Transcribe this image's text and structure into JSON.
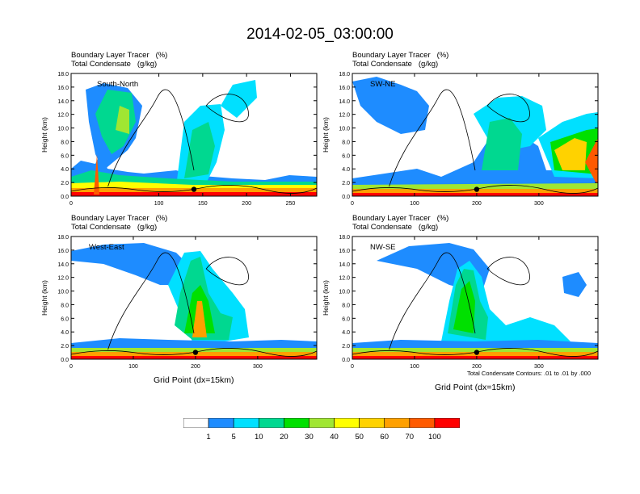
{
  "title": "2014-02-05_03:00:00",
  "panel_header": {
    "line1": "Boundary Layer Tracer",
    "unit1": "(%)",
    "line2": "Total Condensate",
    "unit2": "(g/kg)"
  },
  "x_axis_label": "Grid Point (dx=15km)",
  "contour_note": "Total Condensate Contours: .01 to .01 by .000",
  "colors": {
    "levels": [
      "#ffffff",
      "#1e8cff",
      "#00e0ff",
      "#00d890",
      "#00e000",
      "#a0e632",
      "#ffff00",
      "#ffd200",
      "#ffa000",
      "#ff5a00",
      "#ff0000"
    ]
  },
  "colorbar": {
    "labels": [
      "1",
      "5",
      "10",
      "20",
      "30",
      "40",
      "50",
      "60",
      "70",
      "100"
    ]
  },
  "chart_data": [
    {
      "type": "contour",
      "name": "South-North",
      "title": "South-North",
      "ylabel": "Height (km)",
      "yticks": [
        "0.0",
        "2.0",
        "4.0",
        "6.0",
        "8.0",
        "10.0",
        "12.0",
        "14.0",
        "16.0",
        "18.0"
      ],
      "ylim": [
        0,
        18
      ],
      "xticks": [
        "0",
        "100",
        "150",
        "200",
        "250"
      ],
      "xtick_values": [
        0,
        100,
        150,
        200,
        250
      ],
      "xlim": [
        0,
        280
      ],
      "marker_x": 140,
      "marker_y": 1.0
    },
    {
      "type": "contour",
      "name": "SW-NE",
      "title": "SW-NE",
      "ylabel": "Height (km)",
      "yticks": [
        "0.0",
        "2.0",
        "4.0",
        "6.0",
        "8.0",
        "10.0",
        "12.0",
        "14.0",
        "16.0",
        "18.0"
      ],
      "ylim": [
        0,
        18
      ],
      "xticks": [
        "0",
        "100",
        "200",
        "300"
      ],
      "xtick_values": [
        0,
        100,
        200,
        300
      ],
      "xlim": [
        0,
        395
      ],
      "marker_x": 200,
      "marker_y": 1.0
    },
    {
      "type": "contour",
      "name": "West-East",
      "title": "West-East",
      "ylabel": "Height (km)",
      "yticks": [
        "0.0",
        "2.0",
        "4.0",
        "6.0",
        "8.0",
        "10.0",
        "12.0",
        "14.0",
        "16.0",
        "18.0"
      ],
      "ylim": [
        0,
        18
      ],
      "xticks": [
        "0",
        "100",
        "200",
        "300"
      ],
      "xtick_values": [
        0,
        100,
        200,
        300
      ],
      "xlim": [
        0,
        395
      ],
      "marker_x": 200,
      "marker_y": 1.0
    },
    {
      "type": "contour",
      "name": "NW-SE",
      "title": "NW-SE",
      "ylabel": "Height (km)",
      "yticks": [
        "0.0",
        "2.0",
        "4.0",
        "6.0",
        "8.0",
        "10.0",
        "12.0",
        "14.0",
        "16.0",
        "18.0"
      ],
      "ylim": [
        0,
        18
      ],
      "xticks": [
        "0",
        "100",
        "200",
        "300"
      ],
      "xtick_values": [
        0,
        100,
        200,
        300
      ],
      "xlim": [
        0,
        395
      ],
      "marker_x": 200,
      "marker_y": 1.0
    }
  ]
}
